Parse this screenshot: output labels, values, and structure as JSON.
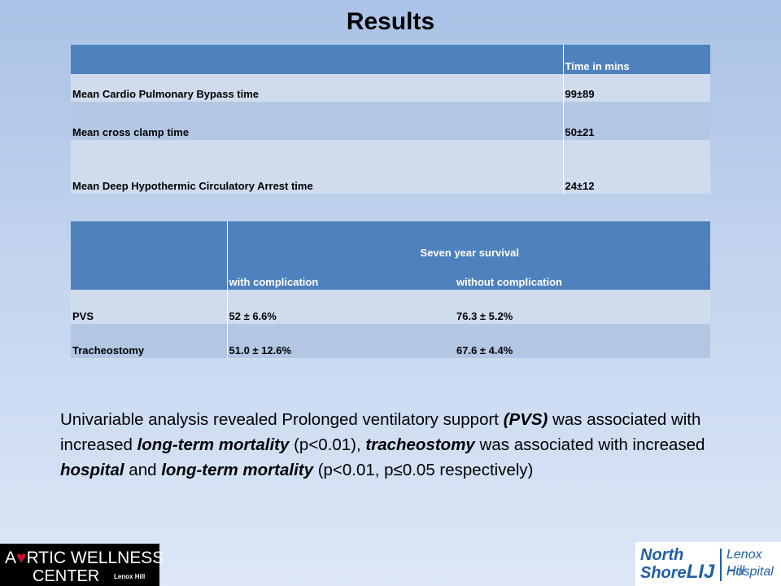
{
  "title": "Results",
  "table1": {
    "header": [
      "",
      "Time in mins"
    ],
    "rows": [
      [
        "Mean Cardio Pulmonary Bypass time",
        "99±89"
      ],
      [
        "Mean cross clamp time",
        "50±21"
      ],
      [
        "Mean Deep Hypothermic Circulatory Arrest time",
        "24±12"
      ]
    ]
  },
  "table2": {
    "group_header": "Seven year survival",
    "subheaders": [
      "with complication",
      "without complication"
    ],
    "rows": [
      [
        "PVS",
        "52 ± 6.6%",
        "76.3 ± 5.2%"
      ],
      [
        "Tracheostomy",
        "51.0 ± 12.6%",
        "67.6 ± 4.4%"
      ]
    ]
  },
  "paragraph": {
    "p1": "Univariable analysis revealed Prolonged ventilatory support ",
    "p2": "(PVS)",
    "p3": " was associated with increased ",
    "p4": "long-term mortality",
    "p5": " (p<0.01), ",
    "p6": "tracheostomy",
    "p7": " was associated with increased ",
    "p8": "hospital",
    "p9": " and ",
    "p10": "long-term mortality",
    "p11": " (p<0.01, p≤0.05 respectively)"
  },
  "logo_left": {
    "line1_a": "A",
    "line1_heart": "♥",
    "line1_b": "RTIC WELLNESS",
    "line2": "CENTER",
    "line3": "Lenox Hill"
  },
  "logo_right": {
    "north": "North",
    "shore": "Shore",
    "lij": "LIJ",
    "lenox": "Lenox Hill",
    "hospital": "Hospital"
  }
}
